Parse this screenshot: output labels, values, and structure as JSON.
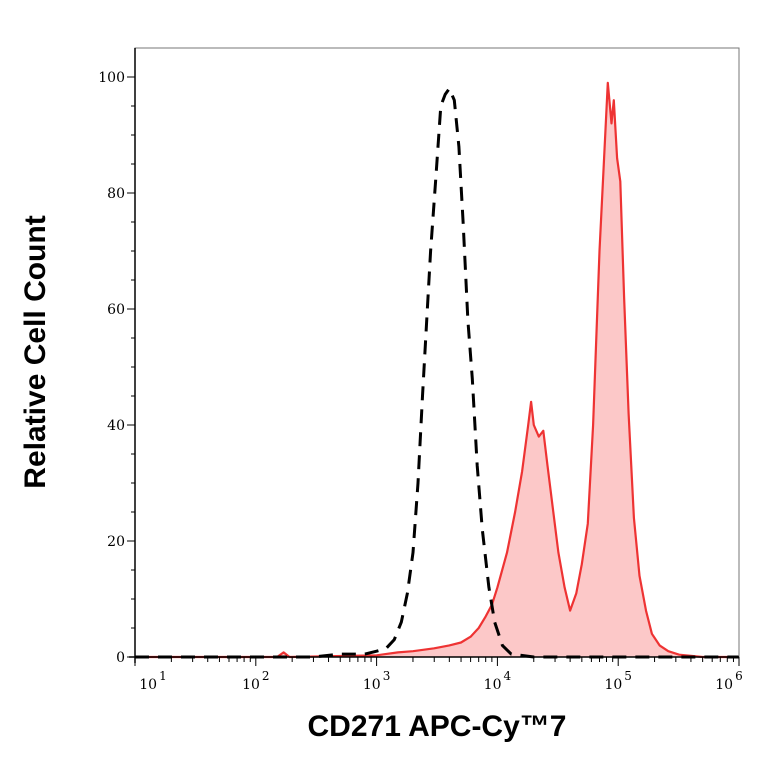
{
  "chart_data": {
    "type": "area",
    "title": "",
    "xlabel": "CD271 APC-Cy™7",
    "ylabel": "Relative Cell Count",
    "xscale": "log",
    "xlim": [
      10,
      1000000
    ],
    "ylim": [
      0,
      100
    ],
    "grid": false,
    "x_tick_labels": [
      {
        "base": "10",
        "exp": "1",
        "value": 10
      },
      {
        "base": "10",
        "exp": "2",
        "value": 100
      },
      {
        "base": "10",
        "exp": "3",
        "value": 1000
      },
      {
        "base": "10",
        "exp": "4",
        "value": 10000
      },
      {
        "base": "10",
        "exp": "5",
        "value": 100000
      },
      {
        "base": "10",
        "exp": "6",
        "value": 1000000
      }
    ],
    "y_tick_labels": [
      "0",
      "20",
      "40",
      "60",
      "80",
      "100"
    ],
    "y_ticks": [
      0,
      20,
      40,
      60,
      80,
      100
    ],
    "series": [
      {
        "style": "dashed",
        "color": "#000000",
        "filled": false,
        "points": [
          [
            10,
            0
          ],
          [
            300,
            0
          ],
          [
            500,
            0.5
          ],
          [
            800,
            0.5
          ],
          [
            1000,
            1
          ],
          [
            1200,
            1.5
          ],
          [
            1400,
            3
          ],
          [
            1600,
            6
          ],
          [
            1800,
            11
          ],
          [
            2000,
            18
          ],
          [
            2200,
            30
          ],
          [
            2400,
            45
          ],
          [
            2600,
            58
          ],
          [
            2800,
            70
          ],
          [
            3100,
            83
          ],
          [
            3400,
            95
          ],
          [
            3700,
            97
          ],
          [
            4000,
            98
          ],
          [
            4400,
            96
          ],
          [
            4800,
            88
          ],
          [
            5200,
            75
          ],
          [
            5700,
            58
          ],
          [
            6200,
            48
          ],
          [
            6800,
            33
          ],
          [
            7500,
            22
          ],
          [
            8500,
            12
          ],
          [
            9500,
            6
          ],
          [
            11000,
            2
          ],
          [
            13000,
            0.5
          ],
          [
            20000,
            0
          ],
          [
            1000000,
            0
          ]
        ]
      },
      {
        "style": "solid",
        "color": "#ee3333",
        "fill": "#fcc8c8",
        "filled": true,
        "points": [
          [
            10,
            0
          ],
          [
            150,
            0
          ],
          [
            170,
            0.8
          ],
          [
            190,
            0
          ],
          [
            1000,
            0.3
          ],
          [
            1500,
            0.8
          ],
          [
            2000,
            1
          ],
          [
            3000,
            1.5
          ],
          [
            4000,
            2
          ],
          [
            5000,
            2.5
          ],
          [
            6000,
            3.5
          ],
          [
            7000,
            5
          ],
          [
            8000,
            7
          ],
          [
            9000,
            9
          ],
          [
            10000,
            12
          ],
          [
            12000,
            18
          ],
          [
            14000,
            25
          ],
          [
            16000,
            32
          ],
          [
            18000,
            40
          ],
          [
            19000,
            44
          ],
          [
            20000,
            40
          ],
          [
            22000,
            38
          ],
          [
            24000,
            39
          ],
          [
            26000,
            33
          ],
          [
            29000,
            25
          ],
          [
            32000,
            18
          ],
          [
            36000,
            12
          ],
          [
            40000,
            8
          ],
          [
            45000,
            11
          ],
          [
            50000,
            16
          ],
          [
            56000,
            23
          ],
          [
            62000,
            40
          ],
          [
            70000,
            70
          ],
          [
            76000,
            85
          ],
          [
            82000,
            99
          ],
          [
            88000,
            92
          ],
          [
            92000,
            96
          ],
          [
            98000,
            86
          ],
          [
            104000,
            82
          ],
          [
            112000,
            62
          ],
          [
            122000,
            42
          ],
          [
            135000,
            24
          ],
          [
            150000,
            14
          ],
          [
            170000,
            8
          ],
          [
            190000,
            4
          ],
          [
            220000,
            2
          ],
          [
            260000,
            1
          ],
          [
            320000,
            0.4
          ],
          [
            500000,
            0
          ],
          [
            1000000,
            0
          ]
        ]
      }
    ]
  }
}
